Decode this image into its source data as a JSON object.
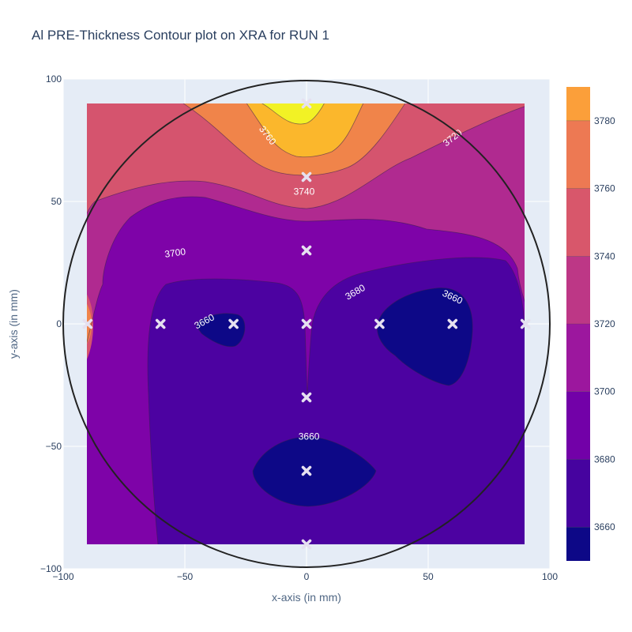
{
  "chart_data": {
    "type": "contour",
    "title": "Al PRE-Thickness Contour plot on XRA for RUN 1",
    "xlabel": "x-axis (in mm)",
    "ylabel": "y-axis (in mm)",
    "xlim": [
      -100,
      100
    ],
    "ylim": [
      -100,
      100
    ],
    "x_ticks": [
      -100,
      -50,
      0,
      50,
      100
    ],
    "y_ticks": [
      -100,
      -50,
      0,
      50,
      100
    ],
    "x_tick_labels": [
      "−100",
      "−50",
      "0",
      "50",
      "100"
    ],
    "y_tick_labels": [
      "−100",
      "−50",
      "0",
      "50",
      "100"
    ],
    "grid": true,
    "wafer_circle_radius": 100,
    "contour_levels": [
      3660,
      3680,
      3700,
      3720,
      3740,
      3760,
      3780
    ],
    "colorbar": {
      "range": [
        3650,
        3790
      ],
      "ticks": [
        3660,
        3680,
        3700,
        3720,
        3740,
        3760,
        3780
      ],
      "tick_labels": [
        "3660",
        "3680",
        "3700",
        "3720",
        "3740",
        "3760",
        "3780"
      ],
      "colors": [
        "#0d0887",
        "#46039f",
        "#7201a8",
        "#9c179e",
        "#bd3786",
        "#d8576b",
        "#ed7953",
        "#fb9f3a",
        "#fdca26",
        "#f0f921"
      ]
    },
    "measurement_points": [
      {
        "x": 0,
        "y": 90
      },
      {
        "x": 0,
        "y": 60
      },
      {
        "x": 0,
        "y": 30
      },
      {
        "x": 0,
        "y": 0
      },
      {
        "x": 0,
        "y": -30
      },
      {
        "x": 0,
        "y": -60
      },
      {
        "x": 0,
        "y": -90
      },
      {
        "x": -90,
        "y": 0
      },
      {
        "x": -60,
        "y": 0
      },
      {
        "x": -30,
        "y": 0
      },
      {
        "x": 30,
        "y": 0
      },
      {
        "x": 60,
        "y": 0
      },
      {
        "x": 90,
        "y": 0
      }
    ],
    "contour_labels": [
      {
        "text": "3760",
        "x": -16,
        "y": 77,
        "angle": 52
      },
      {
        "text": "3720",
        "x": 60,
        "y": 76,
        "angle": -38
      },
      {
        "text": "3740",
        "x": -1,
        "y": 54,
        "angle": 0
      },
      {
        "text": "3700",
        "x": -54,
        "y": 29,
        "angle": -8
      },
      {
        "text": "3680",
        "x": 20,
        "y": 13,
        "angle": -30
      },
      {
        "text": "3660",
        "x": 60,
        "y": 11,
        "angle": 25
      },
      {
        "text": "3660",
        "x": -42,
        "y": 1,
        "angle": -28
      },
      {
        "text": "3660",
        "x": 1,
        "y": -46,
        "angle": 0
      }
    ]
  }
}
